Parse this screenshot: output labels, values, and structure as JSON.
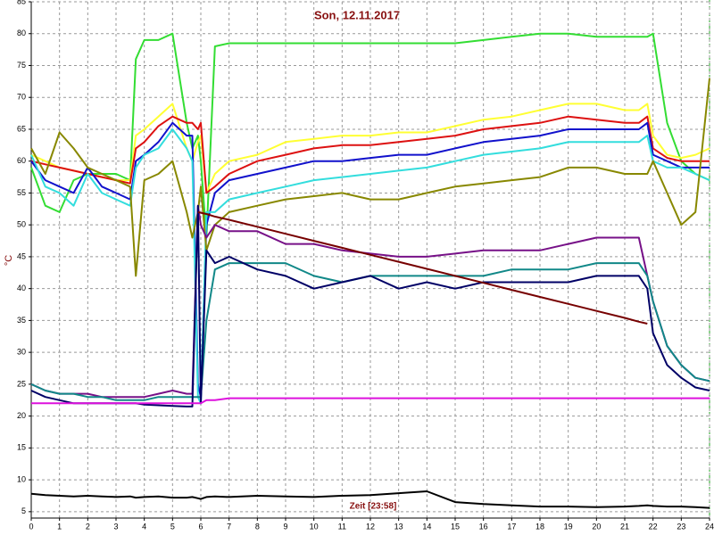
{
  "chart_data": {
    "type": "line",
    "title": "Son, 12.11.2017",
    "y_label": "°C",
    "x_label": "Zeit [23:58]",
    "xlim": [
      0,
      24
    ],
    "ylim": [
      4,
      85
    ],
    "xticks": [
      0,
      1,
      2,
      3,
      4,
      5,
      6,
      7,
      8,
      9,
      10,
      11,
      12,
      13,
      14,
      15,
      16,
      17,
      18,
      19,
      20,
      21,
      22,
      23,
      24
    ],
    "yticks": [
      5,
      10,
      15,
      20,
      25,
      30,
      35,
      40,
      45,
      50,
      55,
      60,
      65,
      70,
      75,
      80,
      85
    ],
    "grid": true,
    "x": [
      0,
      0.5,
      1,
      1.5,
      2,
      2.5,
      3,
      3.5,
      3.7,
      4,
      4.5,
      5,
      5.5,
      5.7,
      5.9,
      6,
      6.2,
      6.5,
      7,
      8,
      9,
      10,
      11,
      12,
      13,
      14,
      15,
      16,
      17,
      18,
      19,
      20,
      21,
      21.5,
      21.8,
      22,
      22.5,
      23,
      23.5,
      24
    ],
    "series": [
      {
        "color": "#33dd33",
        "values": [
          59,
          53,
          52,
          57,
          58,
          58,
          58,
          57,
          76,
          79,
          79,
          80,
          66,
          62,
          64,
          60,
          48,
          78,
          78.5,
          78.5,
          78.5,
          78.5,
          78.5,
          78.5,
          78.5,
          78.5,
          78.5,
          79,
          79.5,
          80,
          80,
          79.5,
          79.5,
          79.5,
          79.5,
          80,
          66,
          60,
          58,
          57
        ]
      },
      {
        "color": "#ffff33",
        "values": [
          61,
          60,
          59,
          58.5,
          58,
          57.5,
          57,
          57,
          64,
          65,
          67,
          69,
          62,
          60,
          63,
          64,
          55,
          58,
          60,
          61,
          63,
          63.5,
          64,
          64,
          64.5,
          64.5,
          65.5,
          66.5,
          67,
          68,
          69,
          69,
          68,
          68,
          69,
          64,
          61,
          60.5,
          61,
          62
        ]
      },
      {
        "color": "#dd1111",
        "values": [
          60,
          59.5,
          59,
          58.5,
          58,
          57.5,
          57,
          56.5,
          62,
          63,
          65.5,
          67,
          66,
          66,
          65,
          66,
          55,
          56,
          58,
          60,
          61,
          62,
          62.5,
          62.5,
          63,
          63.5,
          64,
          65,
          65.5,
          66,
          67,
          66.5,
          66,
          66,
          67,
          62,
          60.5,
          60,
          60,
          60
        ]
      },
      {
        "color": "#1111cc",
        "values": [
          60,
          57,
          56,
          55,
          59,
          56,
          55,
          54,
          60,
          61,
          63,
          66,
          64,
          64,
          25,
          23,
          50,
          55,
          57,
          58,
          59,
          60,
          60,
          60.5,
          61,
          61,
          62,
          63,
          63.5,
          64,
          65,
          65,
          65,
          65,
          66,
          61,
          60,
          59,
          59,
          59
        ]
      },
      {
        "color": "#33dddd",
        "values": [
          61,
          56,
          55,
          53,
          58,
          55,
          54,
          53,
          59,
          61,
          62,
          65,
          62,
          60,
          23,
          22,
          52,
          52,
          54,
          55,
          56,
          57,
          57.5,
          58,
          58.5,
          59,
          60,
          61,
          61.5,
          62,
          63,
          63,
          63,
          63,
          64,
          60,
          59,
          59,
          58,
          57
        ]
      },
      {
        "color": "#888800",
        "values": [
          62,
          58,
          64.5,
          62,
          59,
          58,
          57,
          56,
          42,
          57,
          58,
          60,
          52,
          48,
          52,
          56,
          46,
          50,
          52,
          53,
          54,
          54.5,
          55,
          54,
          54,
          55,
          56,
          56.5,
          57,
          57.5,
          59,
          59,
          58,
          58,
          58,
          60,
          55,
          50,
          52,
          73
        ]
      },
      {
        "color": "#771188",
        "values": [
          25,
          24,
          23.5,
          23.5,
          23.5,
          23,
          23,
          23,
          23,
          23,
          23.5,
          24,
          23.5,
          23.5,
          53,
          50,
          48,
          50,
          49,
          49,
          47,
          47,
          46,
          45.5,
          45,
          45,
          45.5,
          46,
          46,
          46,
          47,
          48,
          48,
          48,
          42,
          38,
          31,
          28,
          26,
          25.5
        ]
      },
      {
        "color": "#118888",
        "values": [
          25,
          24,
          23.5,
          23.5,
          23,
          23,
          22.5,
          22.5,
          22.5,
          22.5,
          23,
          23,
          23,
          23,
          23,
          23,
          35,
          43,
          44,
          44,
          44,
          42,
          41,
          42,
          42,
          42,
          42,
          42,
          43,
          43,
          43,
          44,
          44,
          44,
          42,
          38,
          31,
          28,
          26,
          25.5
        ]
      },
      {
        "color": "#000066",
        "values": [
          24,
          23,
          22.5,
          22,
          22,
          22,
          22,
          22,
          22,
          21.8,
          21.7,
          21.6,
          21.5,
          21.5,
          53,
          22,
          46,
          44,
          45,
          43,
          42,
          40,
          41,
          42,
          40,
          41,
          40,
          41,
          41,
          41,
          41,
          42,
          42,
          42,
          40,
          33,
          28,
          26,
          24.5,
          24
        ]
      },
      {
        "color": "#770000",
        "values": [
          null,
          null,
          null,
          null,
          null,
          null,
          null,
          null,
          null,
          null,
          null,
          null,
          null,
          null,
          52,
          51.9,
          51.7,
          51.3,
          50.8,
          49.7,
          48.6,
          47.5,
          46.4,
          45.3,
          44.2,
          43.1,
          42,
          40.9,
          39.8,
          38.7,
          37.6,
          36.5,
          35.4,
          34.8,
          34.5,
          null,
          null,
          null,
          null,
          null
        ]
      },
      {
        "color": "#dd11dd",
        "values": [
          22,
          22,
          22,
          22,
          22,
          22,
          22,
          22,
          22,
          22,
          22,
          22,
          22,
          22,
          22,
          22,
          22.5,
          22.5,
          22.8,
          22.8,
          22.8,
          22.8,
          22.8,
          22.8,
          22.8,
          22.8,
          22.8,
          22.8,
          22.8,
          22.8,
          22.8,
          22.8,
          22.8,
          22.8,
          22.8,
          22.8,
          22.8,
          22.8,
          22.8,
          22.8
        ]
      },
      {
        "color": "#000000",
        "values": [
          7.8,
          7.6,
          7.5,
          7.4,
          7.5,
          7.4,
          7.3,
          7.4,
          7.2,
          7.3,
          7.4,
          7.2,
          7.2,
          7.3,
          7.1,
          7,
          7.3,
          7.4,
          7.3,
          7.5,
          7.4,
          7.3,
          7.5,
          7.6,
          7.9,
          8.2,
          6.5,
          6.2,
          6,
          5.8,
          5.8,
          5.7,
          5.8,
          5.9,
          6,
          5.9,
          5.8,
          5.8,
          5.7,
          5.6
        ]
      }
    ]
  }
}
